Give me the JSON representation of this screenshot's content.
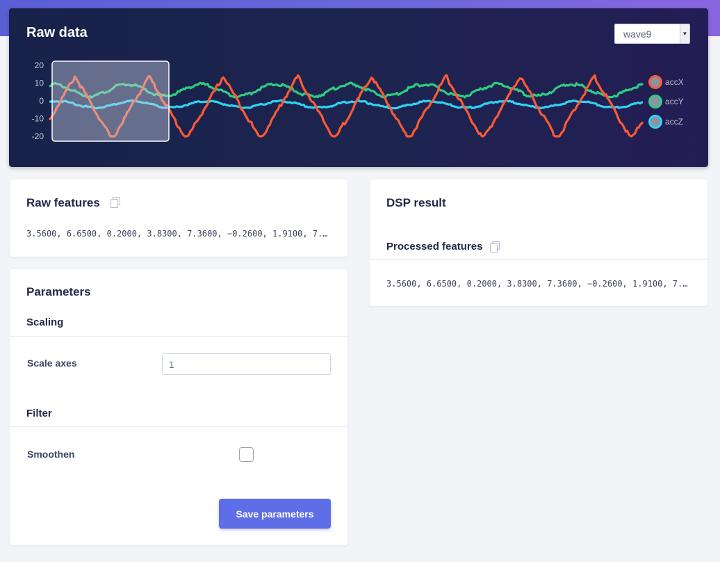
{
  "raw_panel": {
    "title": "Raw data",
    "sample_select": {
      "value": "wave9"
    },
    "legend": [
      {
        "label": "accX",
        "color": "#ff5a33"
      },
      {
        "label": "accY",
        "color": "#2ecc80"
      },
      {
        "label": "accZ",
        "color": "#2fd3f0"
      }
    ]
  },
  "chart_data": {
    "type": "line",
    "y_ticks": [
      "20",
      "10",
      "0",
      "-10",
      "-20"
    ],
    "ylim": [
      -20,
      20
    ],
    "grid": false,
    "legend_position": "right",
    "selection_window": "highlighted range at the start of the signal",
    "series": [
      {
        "name": "accX",
        "color": "#ff5a33",
        "period_fraction": 0.125,
        "amplitude": 17,
        "offset": -4
      },
      {
        "name": "accY",
        "color": "#2ecc80",
        "period_fraction": 0.125,
        "amplitude": 6,
        "offset": 6
      },
      {
        "name": "accZ",
        "color": "#2fd3f0",
        "period_fraction": 0.125,
        "amplitude": 4,
        "offset": -2
      }
    ]
  },
  "raw_features": {
    "title": "Raw features",
    "copy_icon": "copy-icon",
    "values": "3.5600, 6.6500, 0.2000, 3.8300, 7.3600, −0.2600, 1.9100, 7.…"
  },
  "parameters": {
    "title": "Parameters",
    "scaling": {
      "title": "Scaling",
      "scale_axes_label": "Scale axes",
      "scale_axes_value": "1"
    },
    "filter": {
      "title": "Filter",
      "smoothen_label": "Smoothen",
      "smoothen_checked": false
    },
    "save_label": "Save parameters"
  },
  "dsp_result": {
    "title": "DSP result",
    "processed_title": "Processed features",
    "copy_icon": "copy-icon",
    "values": "3.5600, 6.6500, 0.2000, 3.8300, 7.3600, −0.2600, 1.9100, 7.…"
  }
}
